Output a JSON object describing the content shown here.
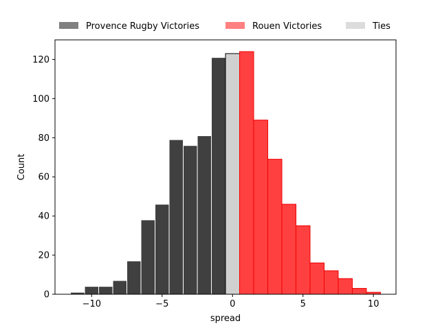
{
  "chart_data": {
    "type": "bar",
    "xlabel": "spread",
    "ylabel": "Count",
    "xlim": [
      -12.6,
      11.6
    ],
    "ylim": [
      0,
      130
    ],
    "xticks": [
      -10,
      -5,
      0,
      5,
      10
    ],
    "yticks": [
      0,
      20,
      40,
      60,
      80,
      100,
      120
    ],
    "grid": false,
    "legend_placement": "top",
    "bin_width": 1,
    "series": [
      {
        "name": "Provence Rugby Victories",
        "color": "#404040",
        "edge": "#ffffff",
        "x": [
          -11,
          -10,
          -9,
          -8,
          -7,
          -6,
          -5,
          -4,
          -3,
          -2,
          -1
        ],
        "values": [
          1,
          4,
          4,
          7,
          17,
          38,
          46,
          79,
          76,
          81,
          121
        ]
      },
      {
        "name": "Ties",
        "color": "#d0d0d0",
        "edge": "#000000",
        "x": [
          0
        ],
        "values": [
          123
        ]
      },
      {
        "name": "Rouen Victories",
        "color": "#ff4040",
        "edge": "#ee0000",
        "x": [
          1,
          2,
          3,
          4,
          5,
          6,
          7,
          8,
          9,
          10
        ],
        "values": [
          124,
          89,
          69,
          46,
          35,
          16,
          12,
          8,
          3,
          1
        ]
      }
    ],
    "legend": [
      {
        "label": "Provence Rugby Victories",
        "color": "#808080"
      },
      {
        "label": "Rouen Victories",
        "color": "#ff8080"
      },
      {
        "label": "Ties",
        "color": "#dcdcdc"
      }
    ]
  }
}
